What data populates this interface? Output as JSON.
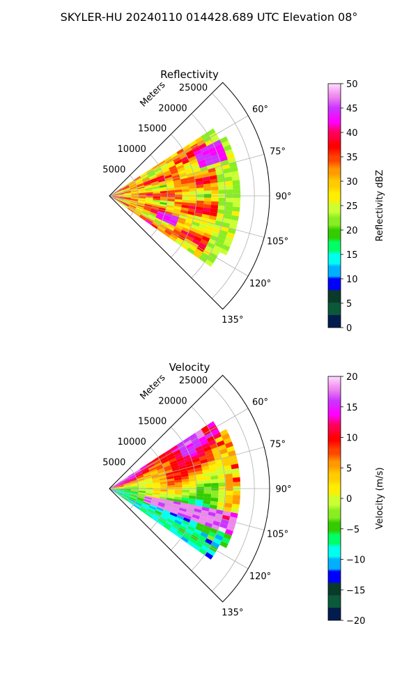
{
  "figure": {
    "title": "SKYLER-HU  20240110  014428.689 UTC Elevation 08°"
  },
  "chart_data": [
    {
      "type": "heatmap",
      "subtype": "polar-sector PPI",
      "title": "Reflectivity",
      "range_axis_label": "Meters",
      "range_ticks": [
        "5000",
        "10000",
        "15000",
        "20000",
        "25000"
      ],
      "range_max": 25000,
      "azimuth_ticks": [
        "60°",
        "75°",
        "90°",
        "105°",
        "120°",
        "135°"
      ],
      "azimuth_range_deg": [
        45,
        135
      ],
      "data_coverage_azimuth_deg": [
        57,
        125
      ],
      "grid": true,
      "colorbar": {
        "label": "Reflectivity dBZ",
        "min": 0,
        "max": 50,
        "ticks": [
          "0",
          "5",
          "10",
          "15",
          "20",
          "25",
          "30",
          "35",
          "40",
          "45",
          "50"
        ]
      }
    },
    {
      "type": "heatmap",
      "subtype": "polar-sector PPI",
      "title": "Velocity",
      "range_axis_label": "Meters",
      "range_ticks": [
        "5000",
        "10000",
        "15000",
        "20000",
        "25000"
      ],
      "range_max": 25000,
      "azimuth_ticks": [
        "60°",
        "75°",
        "90°",
        "105°",
        "120°",
        "135°"
      ],
      "azimuth_range_deg": [
        45,
        135
      ],
      "data_coverage_azimuth_deg": [
        57,
        125
      ],
      "grid": true,
      "colorbar": {
        "label": "Velocity (m/s)",
        "min": -20,
        "max": 20,
        "ticks": [
          "−20",
          "−15",
          "−10",
          "−5",
          "0",
          "5",
          "10",
          "15",
          "20"
        ]
      }
    }
  ],
  "colormap": [
    "#021c4e",
    "#0a5a3a",
    "#0a3a2a",
    "#0000ff",
    "#00b0ff",
    "#00ffee",
    "#00ff66",
    "#33cc00",
    "#88ee22",
    "#ccff33",
    "#ffee00",
    "#ffcc00",
    "#ff9900",
    "#ff4400",
    "#ff0000",
    "#ff0055",
    "#ff00ff",
    "#cc33ff",
    "#ee88ee",
    "#ffddff"
  ]
}
